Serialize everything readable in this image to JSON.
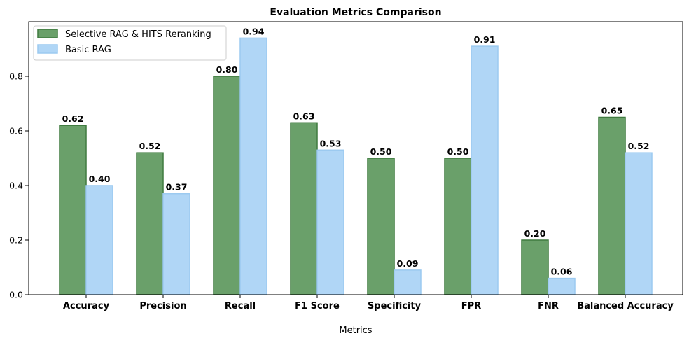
{
  "chart_data": {
    "type": "bar",
    "title": "Evaluation Metrics Comparison",
    "xlabel": "Metrics",
    "ylabel": "",
    "ylim": [
      0,
      1.0
    ],
    "yticks": [
      "0.0",
      "0.2",
      "0.4",
      "0.6",
      "0.8"
    ],
    "ytick_values": [
      0,
      0.2,
      0.4,
      0.6,
      0.8
    ],
    "categories": [
      "Accuracy",
      "Precision",
      "Recall",
      "F1 Score",
      "Specificity",
      "FPR",
      "FNR",
      "Balanced Accuracy"
    ],
    "series": [
      {
        "name": "Selective RAG & HITS Reranking",
        "color": "#6aa06a",
        "edge_color": "#3f7a3f",
        "values": [
          0.62,
          0.52,
          0.8,
          0.63,
          0.5,
          0.5,
          0.2,
          0.65
        ],
        "labels": [
          "0.62",
          "0.52",
          "0.80",
          "0.63",
          "0.50",
          "0.50",
          "0.20",
          "0.65"
        ]
      },
      {
        "name": "Basic RAG",
        "color": "#b0d6f6",
        "edge_color": "#9ccaf0",
        "values": [
          0.4,
          0.37,
          0.94,
          0.53,
          0.09,
          0.91,
          0.06,
          0.52
        ],
        "labels": [
          "0.40",
          "0.37",
          "0.94",
          "0.53",
          "0.09",
          "0.91",
          "0.06",
          "0.52"
        ]
      }
    ],
    "legend_position": "upper-left",
    "grid": false
  }
}
